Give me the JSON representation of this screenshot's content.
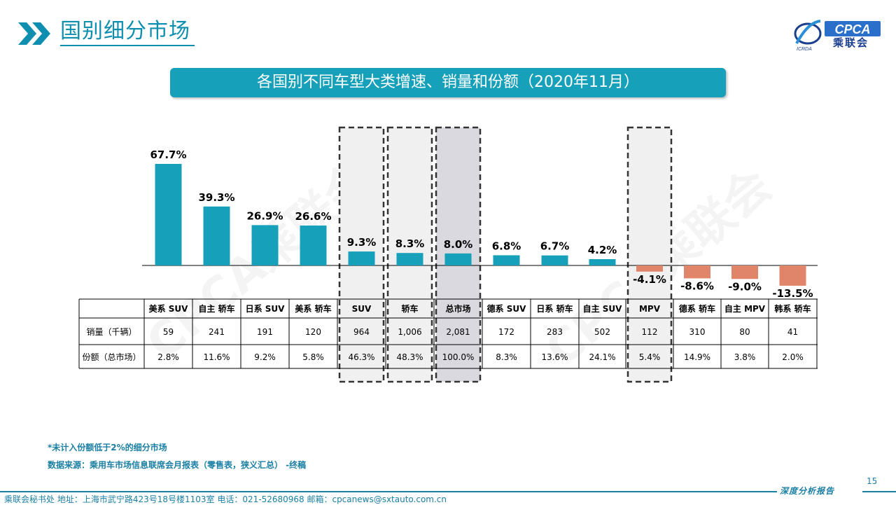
{
  "header": {
    "title": "国别细分市场",
    "logo_text": "CPCA",
    "logo_sub": "乘联会",
    "logo_small": "ICRDA"
  },
  "subtitle": "各国别不同车型大类增速、销量和份额（2020年11月）",
  "watermark": "CPCA乘联会",
  "colors": {
    "positive": "#17a0ba",
    "negative": "#e0856a",
    "highlight_fill": "#f0f0f0",
    "total_fill": "#d9d9df",
    "accent": "#1a7fa3"
  },
  "chart_data": {
    "type": "bar",
    "title": "各国别不同车型大类增速、销量和份额（2020年11月）",
    "categories": [
      "美系 SUV",
      "自主 轿车",
      "日系 SUV",
      "美系 轿车",
      "SUV",
      "轿车",
      "总市场",
      "德系 SUV",
      "日系 轿车",
      "自主 SUV",
      "MPV",
      "德系 轿车",
      "自主 MPV",
      "韩系 轿车"
    ],
    "series": [
      {
        "values": [
          67.7,
          39.3,
          26.9,
          26.6,
          9.3,
          8.3,
          8.0,
          6.8,
          6.7,
          4.2,
          -4.1,
          -8.6,
          -9.0,
          -13.5
        ]
      }
    ],
    "data_labels": [
      "67.7%",
      "39.3%",
      "26.9%",
      "26.6%",
      "9.3%",
      "8.3%",
      "8.0%",
      "6.8%",
      "6.7%",
      "4.2%",
      "-4.1%",
      "-8.6%",
      "-9.0%",
      "-13.5%"
    ],
    "highlighted": [
      "SUV",
      "轿车",
      "总市场",
      "MPV"
    ],
    "table": {
      "rows": [
        {
          "label": "销量（千辆）",
          "values": [
            "59",
            "241",
            "191",
            "120",
            "964",
            "1,006",
            "2,081",
            "172",
            "283",
            "502",
            "112",
            "310",
            "80",
            "41"
          ]
        },
        {
          "label": "份额（总市场）",
          "values": [
            "2.8%",
            "11.6%",
            "9.2%",
            "5.8%",
            "46.3%",
            "48.3%",
            "100.0%",
            "8.3%",
            "13.6%",
            "24.1%",
            "5.4%",
            "14.9%",
            "3.8%",
            "2.0%"
          ]
        }
      ]
    },
    "legend": "none",
    "grid": false
  },
  "footnotes": {
    "note1": "*未计入份额低于2%的细分市场",
    "note2": "数据来源：乘用车市场信息联席会月报表（零售表，狭义汇总）  -终稿"
  },
  "footer": {
    "page_number": "15",
    "right_text": "深度分析报告",
    "left_text": "乘联会秘书处   地址：上海市武宁路423号18号楼1103室    电话：021-52680968    邮箱：cpcanews@sxtauto.com.cn"
  }
}
